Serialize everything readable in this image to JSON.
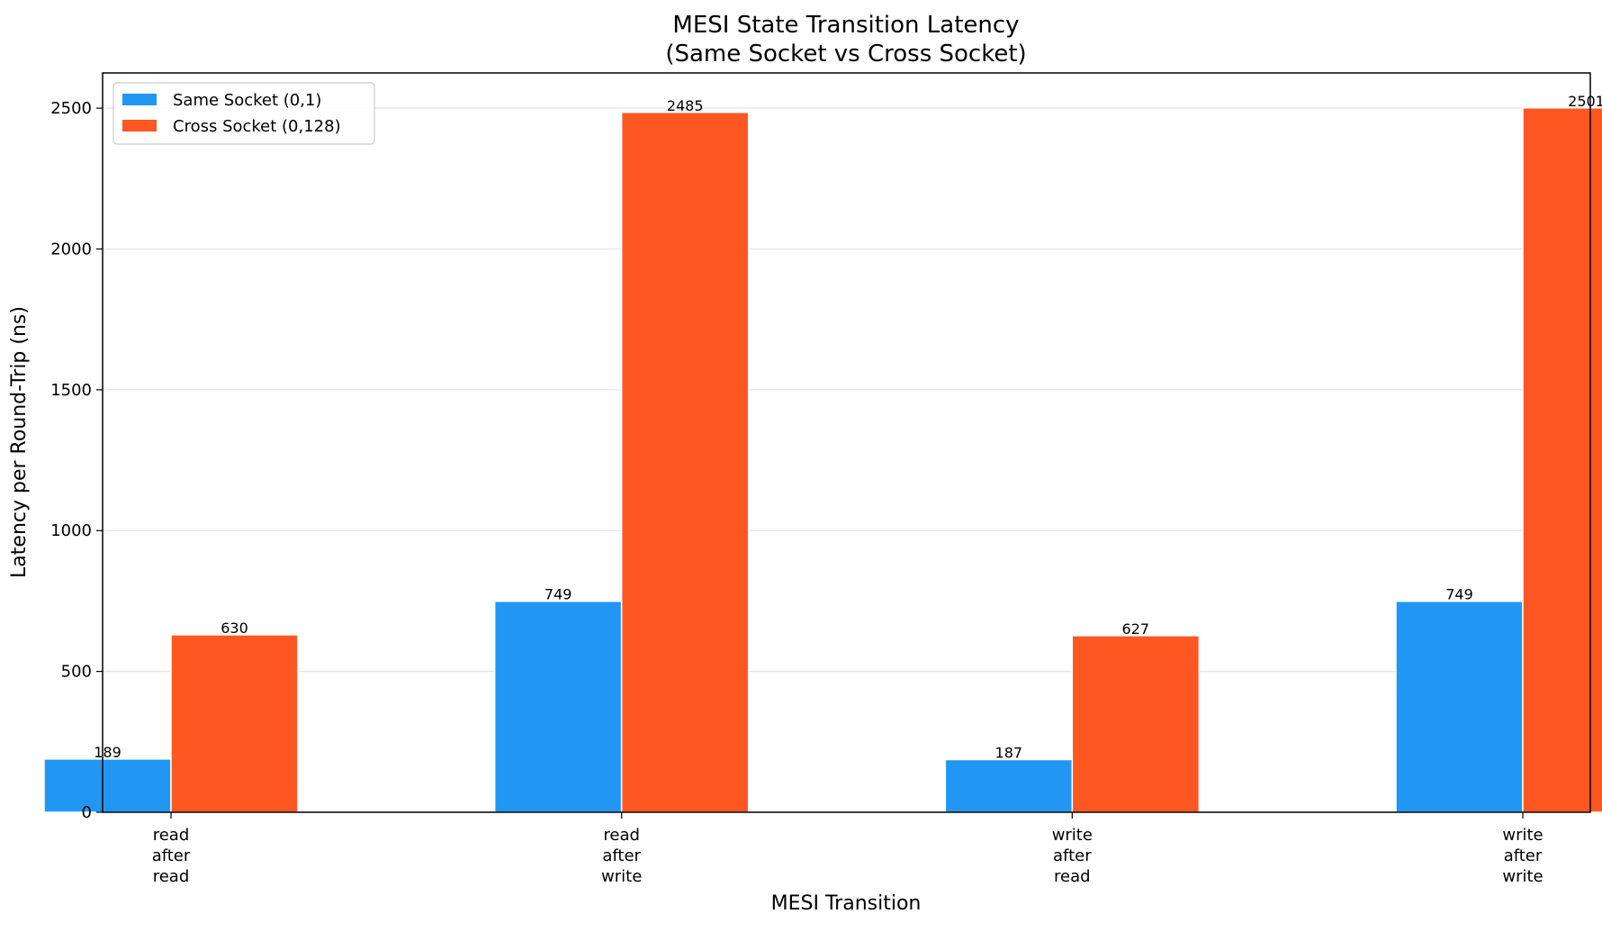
{
  "chart_data": {
    "type": "bar",
    "title": [
      "MESI State Transition Latency",
      "(Same Socket vs Cross Socket)"
    ],
    "xlabel": "MESI Transition",
    "ylabel": "Latency per Round-Trip (ns)",
    "categories": [
      [
        "read",
        "after",
        "read"
      ],
      [
        "read",
        "after",
        "write"
      ],
      [
        "write",
        "after",
        "read"
      ],
      [
        "write",
        "after",
        "write"
      ]
    ],
    "series": [
      {
        "name": "Same Socket (0,1)",
        "color": "#2196F3",
        "values": [
          189,
          749,
          187,
          749
        ]
      },
      {
        "name": "Cross Socket (0,128)",
        "color": "#FF5722",
        "values": [
          630,
          2485,
          627,
          2501
        ]
      }
    ],
    "ylim": [
      0,
      2625
    ],
    "yticks": [
      0,
      500,
      1000,
      1500,
      2000,
      2500
    ],
    "grid": "y",
    "legend": "top-left"
  }
}
